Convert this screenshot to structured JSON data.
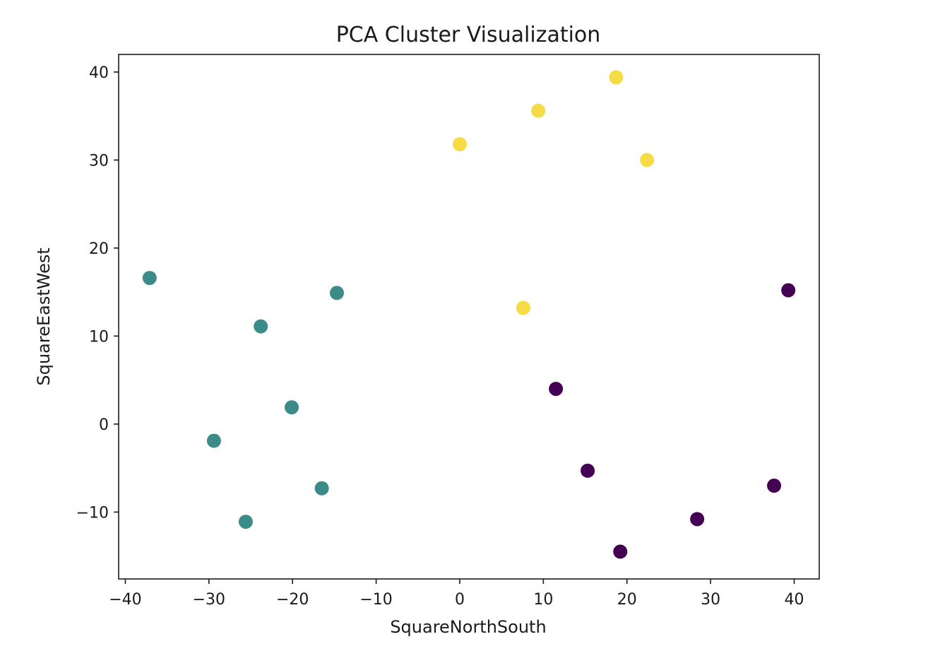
{
  "chart_data": {
    "type": "scatter",
    "title": "PCA Cluster Visualization",
    "xlabel": "SquareNorthSouth",
    "ylabel": "SquareEastWest",
    "xlim": [
      -40.8,
      43.0
    ],
    "ylim": [
      -17.6,
      42.0
    ],
    "xticks": [
      -40,
      -30,
      -20,
      -10,
      0,
      10,
      20,
      30,
      40
    ],
    "xtick_labels": [
      "−40",
      "−30",
      "−20",
      "−10",
      "0",
      "10",
      "20",
      "30",
      "40"
    ],
    "yticks": [
      -10,
      0,
      10,
      20,
      30,
      40
    ],
    "ytick_labels": [
      "−10",
      "0",
      "10",
      "20",
      "30",
      "40"
    ],
    "grid": false,
    "series": [
      {
        "color": "#440154",
        "points": [
          {
            "x": 39.3,
            "y": 15.2
          },
          {
            "x": 11.5,
            "y": 4.0
          },
          {
            "x": 15.3,
            "y": -5.3
          },
          {
            "x": 37.6,
            "y": -7.0
          },
          {
            "x": 28.4,
            "y": -10.8
          },
          {
            "x": 19.2,
            "y": -14.5
          }
        ]
      },
      {
        "color": "#3b8b88",
        "points": [
          {
            "x": -37.1,
            "y": 16.6
          },
          {
            "x": -14.7,
            "y": 14.9
          },
          {
            "x": -23.8,
            "y": 11.1
          },
          {
            "x": -20.1,
            "y": 1.9
          },
          {
            "x": -29.4,
            "y": -1.9
          },
          {
            "x": -16.5,
            "y": -7.3
          },
          {
            "x": -25.6,
            "y": -11.1
          }
        ]
      },
      {
        "color": "#f5dc45",
        "points": [
          {
            "x": 18.7,
            "y": 39.4
          },
          {
            "x": 9.4,
            "y": 35.6
          },
          {
            "x": 0.0,
            "y": 31.8
          },
          {
            "x": 22.4,
            "y": 30.0
          },
          {
            "x": 7.6,
            "y": 13.2
          }
        ]
      }
    ]
  }
}
